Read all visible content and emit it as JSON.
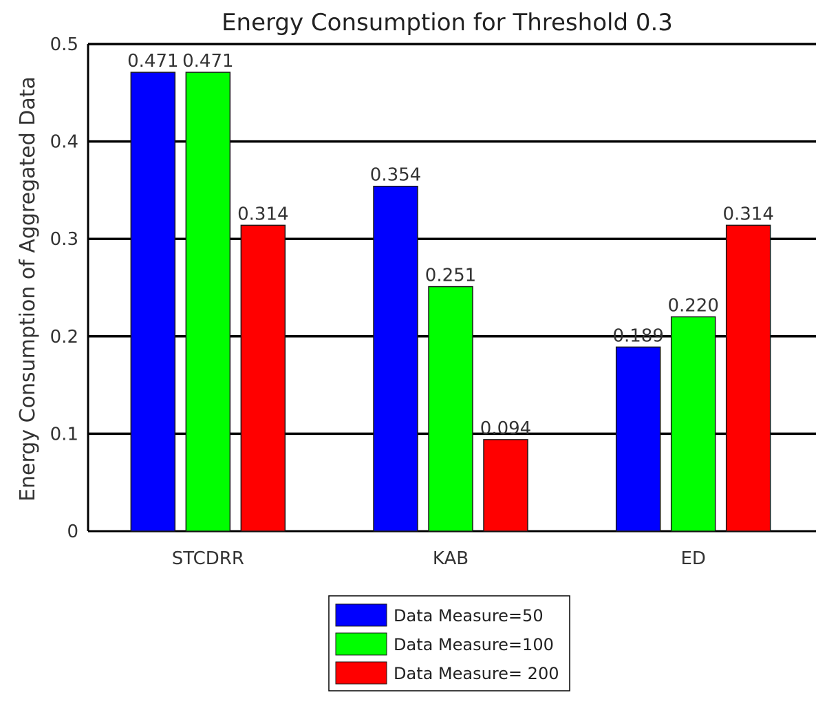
{
  "chart_data": {
    "type": "bar",
    "title": "Energy Consumption for Threshold 0.3",
    "xlabel": "",
    "ylabel": "Energy Consumption of Aggregated Data",
    "categories": [
      "STCDRR",
      "KAB",
      "ED"
    ],
    "series": [
      {
        "name": "Data Measure=50",
        "color": "#0000ff",
        "values": [
          0.471,
          0.354,
          0.189
        ],
        "labels": [
          "0.471",
          "0.354",
          "0.189"
        ]
      },
      {
        "name": "Data Measure=100",
        "color": "#00ff00",
        "values": [
          0.471,
          0.251,
          0.22
        ],
        "labels": [
          "0.471",
          "0.251",
          "0.220"
        ]
      },
      {
        "name": "Data Measure= 200",
        "color": "#ff0000",
        "values": [
          0.314,
          0.094,
          0.314
        ],
        "labels": [
          "0.314",
          "0.094",
          "0.314"
        ]
      }
    ],
    "ylim": [
      0,
      0.5
    ],
    "yticks": [
      0,
      0.1,
      0.2,
      0.3,
      0.4,
      0.5
    ],
    "ytick_labels": [
      "0",
      "0.1",
      "0.2",
      "0.3",
      "0.4",
      "0.5"
    ],
    "grid": true,
    "legend_position": "bottom-center"
  }
}
